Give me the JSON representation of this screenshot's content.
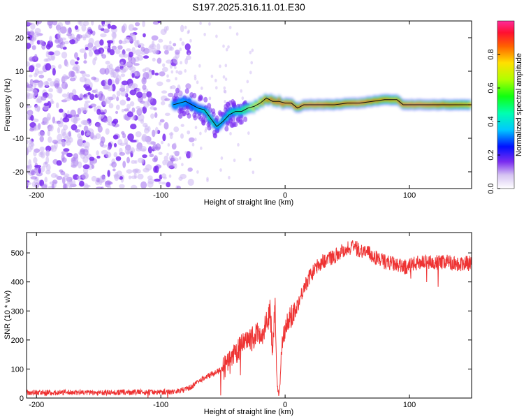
{
  "page": {
    "title": "S197.2025.316.11.01.E30"
  },
  "colorbar": {
    "label": "Normalized spectral amplitude",
    "ticks": [
      "0.0",
      "0.2",
      "0.4",
      "0.6",
      "0.8"
    ],
    "tick_values": [
      0.0,
      0.2,
      0.4,
      0.6,
      0.8
    ],
    "range": [
      0.0,
      1.0
    ]
  },
  "chart_data": [
    {
      "type": "heatmap",
      "title": "S197.2025.316.11.01.E30",
      "xlabel": "Height of straight line (km)",
      "ylabel": "Frequency (Hz)",
      "xlim": [
        -208,
        150
      ],
      "ylim": [
        -25,
        25
      ],
      "x_ticks": [
        -200,
        -100,
        0,
        100
      ],
      "x_tick_labels": [
        "-200",
        "-100",
        "0",
        "100"
      ],
      "y_ticks": [
        -20,
        -10,
        0,
        10,
        20
      ],
      "y_tick_labels": [
        "-20",
        "-10",
        "0",
        "10",
        "20"
      ],
      "description_series": {
        "name": "Dominant frequency track",
        "x": [
          -90,
          -80,
          -75,
          -70,
          -65,
          -60,
          -55,
          -50,
          -45,
          -40,
          -35,
          -30,
          -25,
          -20,
          -15,
          -10,
          -5,
          0,
          5,
          10,
          15,
          20,
          30,
          40,
          50,
          60,
          70,
          80,
          90,
          95,
          100,
          110,
          120,
          130,
          140,
          150
        ],
        "y": [
          0,
          1,
          0,
          -1,
          -1.5,
          -4,
          -6.5,
          -5,
          -3,
          -2,
          -2,
          -1,
          -0.5,
          0.5,
          2,
          1,
          1,
          0.5,
          0.5,
          -1,
          0,
          0,
          0,
          0,
          0.5,
          0.5,
          1,
          1.5,
          1.5,
          0,
          0,
          0,
          0,
          0,
          0,
          0
        ],
        "amplitude": [
          0.35,
          0.35,
          0.3,
          0.35,
          0.45,
          0.5,
          0.45,
          0.4,
          0.45,
          0.5,
          0.55,
          0.6,
          0.7,
          0.75,
          0.85,
          0.9,
          0.92,
          0.95,
          0.95,
          0.9,
          0.95,
          0.97,
          0.97,
          0.9,
          0.92,
          0.97,
          0.9,
          0.85,
          0.8,
          0.95,
          0.97,
          0.97,
          0.95,
          0.9,
          0.85,
          0.8
        ]
      },
      "noise_region": {
        "x_range": [
          -208,
          -85
        ],
        "amplitude_range": [
          0.0,
          0.15
        ]
      }
    },
    {
      "type": "line",
      "xlabel": "Height of straight line (km)",
      "ylabel": "SNR (10 * v/v)",
      "xlim": [
        -208,
        150
      ],
      "ylim": [
        0,
        570
      ],
      "x_ticks": [
        -200,
        -100,
        0,
        100
      ],
      "x_tick_labels": [
        "-200",
        "-100",
        "0",
        "100"
      ],
      "y_ticks": [
        0,
        100,
        200,
        300,
        400,
        500
      ],
      "y_tick_labels": [
        "0",
        "100",
        "200",
        "300",
        "400",
        "500"
      ],
      "color": "#ee3333",
      "series": [
        {
          "name": "SNR",
          "x": [
            -208,
            -190,
            -170,
            -150,
            -130,
            -110,
            -90,
            -80,
            -75,
            -70,
            -65,
            -60,
            -55,
            -50,
            -45,
            -40,
            -35,
            -30,
            -25,
            -20,
            -18,
            -16,
            -14,
            -12,
            -10,
            -8,
            -7,
            -6,
            -5,
            -4,
            -3,
            -2,
            0,
            5,
            10,
            15,
            20,
            25,
            30,
            35,
            40,
            45,
            50,
            55,
            60,
            65,
            70,
            75,
            80,
            85,
            88,
            90,
            95,
            100,
            110,
            120,
            130,
            140,
            150
          ],
          "y": [
            20,
            18,
            20,
            18,
            20,
            20,
            22,
            30,
            40,
            55,
            70,
            80,
            90,
            100,
            120,
            150,
            180,
            190,
            210,
            230,
            200,
            250,
            270,
            300,
            150,
            350,
            100,
            30,
            10,
            60,
            150,
            220,
            240,
            280,
            320,
            380,
            420,
            450,
            470,
            480,
            490,
            505,
            515,
            520,
            510,
            505,
            490,
            480,
            470,
            465,
            460,
            455,
            450,
            455,
            470,
            465,
            470,
            460,
            465
          ],
          "noise_amplitude": 12
        }
      ]
    }
  ]
}
